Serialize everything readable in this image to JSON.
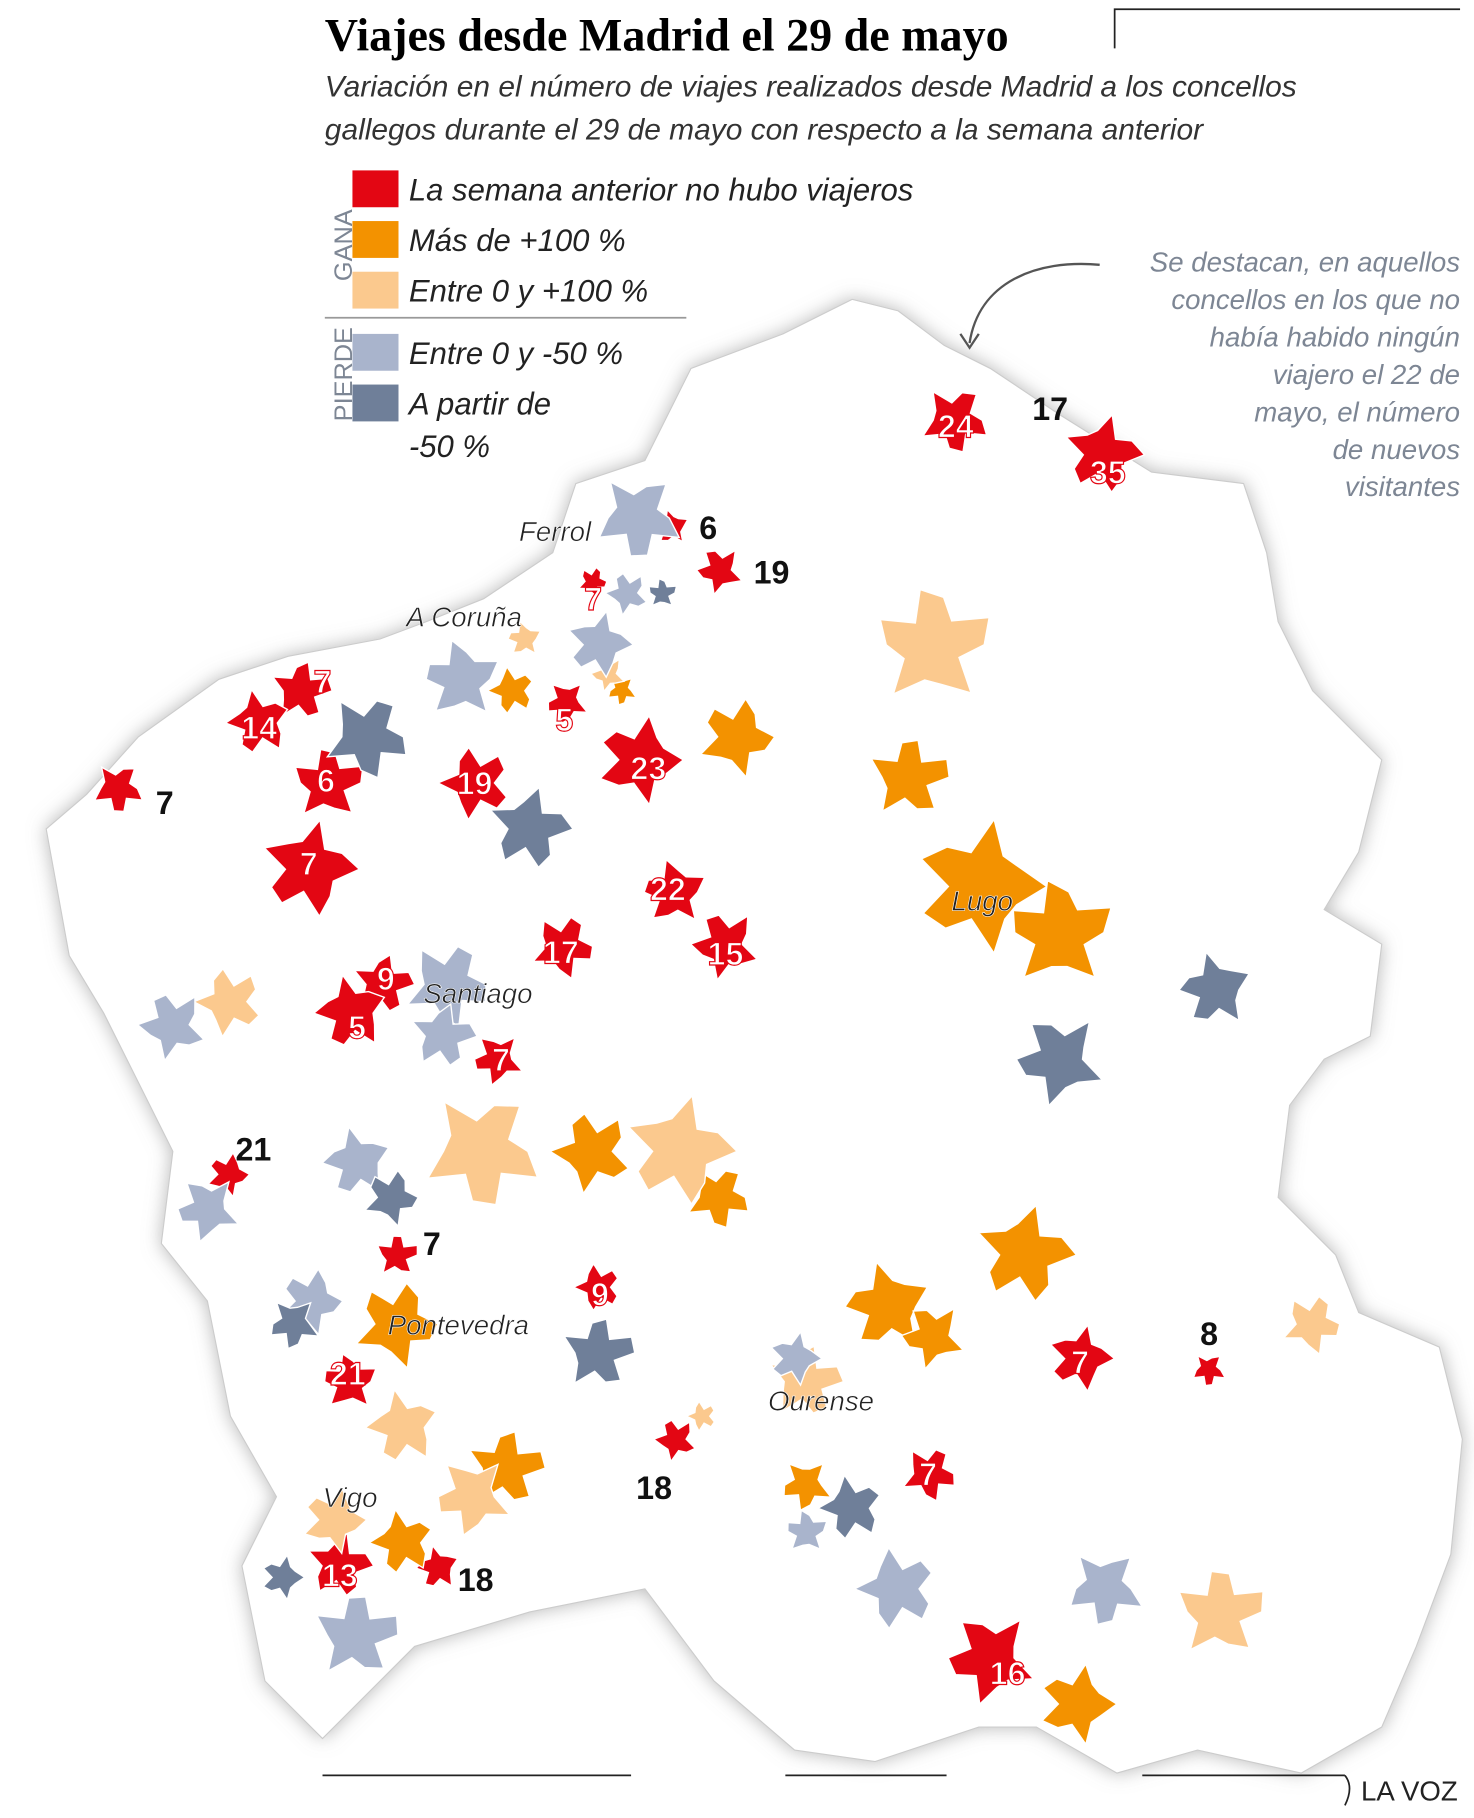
{
  "title": "Viajes desde Madrid el 29 de mayo",
  "subtitle_lines": [
    "Variación en el número de viajes realizados desde Madrid a los concellos",
    "gallegos durante el 29 de mayo con respecto a la semana anterior"
  ],
  "legend": {
    "groups": [
      "GANA",
      "PIERDE"
    ],
    "items": [
      {
        "lines": [
          "La semana anterior no hubo viajeros"
        ],
        "color": "#e30613"
      },
      {
        "lines": [
          "Más de +100 %"
        ],
        "color": "#f39200"
      },
      {
        "lines": [
          "Entre 0 y +100 %"
        ],
        "color": "#fbc98e"
      },
      {
        "lines": [
          "Entre 0 y -50 %"
        ],
        "color": "#a9b4cc"
      },
      {
        "lines": [
          "A partir de",
          "-50 %"
        ],
        "color": "#6f7f99"
      }
    ]
  },
  "annotation_lines": [
    "Se destacan, en aquellos",
    "concellos en los que no",
    "había habido ningún",
    "viajero el 22 de",
    "mayo, el número",
    "de nuevos",
    "visitantes"
  ],
  "cities": [
    "Ferrol",
    "A Coruña",
    "Santiago",
    "Lugo",
    "Pontevedra",
    "Ourense",
    "Vigo"
  ],
  "new_visitors": [
    24,
    17,
    35,
    6,
    19,
    7,
    7,
    14,
    5,
    23,
    6,
    19,
    7,
    7,
    22,
    17,
    15,
    9,
    5,
    7,
    21,
    7,
    9,
    8,
    7,
    21,
    18,
    7,
    13,
    18,
    16
  ],
  "credit": "LA VOZ"
}
